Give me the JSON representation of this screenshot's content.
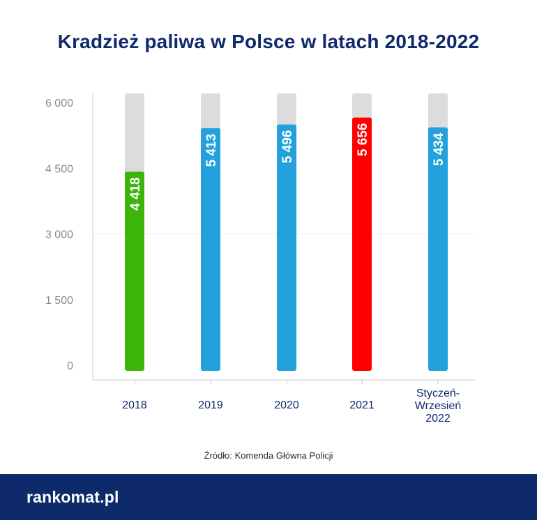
{
  "title": "Kradzież paliwa w Polsce w latach 2018-2022",
  "source": "Źródło: Komenda Główna Policji",
  "logo": "rankomat.pl",
  "chart_data": {
    "type": "bar",
    "title": "Kradzież paliwa w Polsce w latach 2018-2022",
    "xlabel": "",
    "ylabel": "",
    "categories": [
      [
        "2018"
      ],
      [
        "2019"
      ],
      [
        "2020"
      ],
      [
        "2021"
      ],
      [
        "Styczeń-",
        "Wrzesień",
        "2022"
      ]
    ],
    "values": [
      4418,
      5413,
      5496,
      5656,
      5434
    ],
    "value_labels": [
      "4 418",
      "5 413",
      "5 496",
      "5 656",
      "5 434"
    ],
    "bar_colors": [
      "#3cb40a",
      "#22a1dc",
      "#22a1dc",
      "#ff0000",
      "#22a1dc"
    ],
    "background_bar_color": "#dcdcdc",
    "yticks": [
      0,
      1500,
      3000,
      4500,
      6000
    ],
    "ytick_labels": [
      "0",
      "1 500",
      "3 000",
      "4 500",
      "6 000"
    ],
    "ylim": [
      0,
      6200
    ],
    "grid": true
  },
  "colors": {
    "title": "#0f2a6b",
    "footer": "#0f2a6b",
    "axis_label": "#8a8a8a",
    "category_label": "#0f2a6b"
  }
}
